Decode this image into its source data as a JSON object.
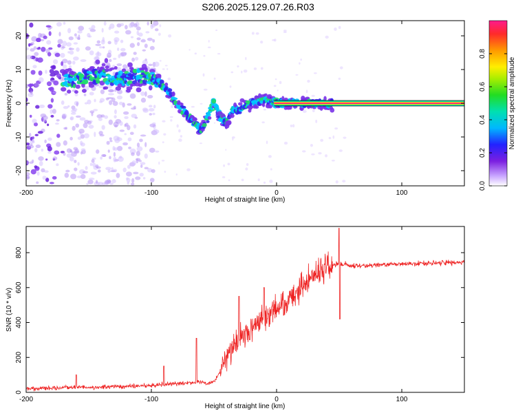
{
  "title": "S206.2025.129.07.26.R03",
  "colors": {
    "snr_line": "#ee2222",
    "frame": "#000000",
    "spectrogram_low": "#e8d8ff",
    "spectrogram_mid": "#6a22dd",
    "spectrogram_high": "#ff2a7a"
  },
  "chart_data": [
    {
      "type": "heatmap",
      "name": "spectrogram",
      "xlabel": "Height of straight line (km)",
      "ylabel": "Frequency (Hz)",
      "xlim": [
        -200,
        150
      ],
      "ylim": [
        -24.5,
        24.5
      ],
      "xticks": [
        -200,
        -100,
        0,
        100
      ],
      "yticks": [
        -20,
        -10,
        0,
        10,
        20
      ],
      "grid": false,
      "colorbar": {
        "label": "Normalized spectral amplitude",
        "range": [
          0,
          1
        ],
        "ticks": [
          "0.0",
          "0.2",
          "0.4",
          "0.6",
          "0.8"
        ]
      },
      "ridge": {
        "x": [
          -170,
          -160,
          -150,
          -140,
          -130,
          -120,
          -110,
          -100,
          -95,
          -90,
          -85,
          -80,
          -75,
          -70,
          -65,
          -60,
          -55,
          -50,
          -45,
          -40,
          -35,
          -30,
          -25,
          -20,
          -15,
          -10,
          -5,
          0,
          45,
          150
        ],
        "y": [
          6.5,
          7,
          8,
          8,
          7.5,
          7.5,
          8,
          7.5,
          6.5,
          5,
          3,
          0,
          -2,
          -4,
          -6,
          -8,
          -4,
          0.5,
          -4,
          -6,
          -2,
          -2,
          -1,
          0,
          0.5,
          1,
          0.5,
          0,
          0,
          0
        ]
      }
    },
    {
      "type": "line",
      "name": "snr",
      "xlabel": "Height of straight line (km)",
      "ylabel": "SNR (10 * v/v)",
      "xlim": [
        -200,
        150
      ],
      "ylim": [
        0,
        950
      ],
      "xticks": [
        -200,
        -100,
        0,
        100
      ],
      "yticks": [
        0,
        200,
        400,
        600,
        800
      ],
      "grid": false,
      "trend": {
        "x": [
          -200,
          -180,
          -160,
          -140,
          -120,
          -100,
          -90,
          -80,
          -70,
          -60,
          -55,
          -50,
          -45,
          -40,
          -35,
          -30,
          -25,
          -20,
          -15,
          -10,
          -5,
          0,
          5,
          10,
          15,
          20,
          25,
          30,
          35,
          40,
          45,
          50,
          55,
          60,
          70,
          80,
          100,
          120,
          150
        ],
        "y": [
          20,
          25,
          30,
          30,
          35,
          40,
          45,
          50,
          55,
          60,
          50,
          60,
          120,
          200,
          260,
          300,
          330,
          360,
          390,
          420,
          450,
          470,
          500,
          520,
          560,
          600,
          640,
          670,
          700,
          720,
          730,
          740,
          730,
          725,
          725,
          730,
          735,
          740,
          745
        ]
      },
      "spikes": {
        "x": [
          -160,
          -90,
          -64,
          -30,
          -10,
          50
        ],
        "y": [
          100,
          150,
          310,
          550,
          600,
          940
        ]
      }
    }
  ]
}
